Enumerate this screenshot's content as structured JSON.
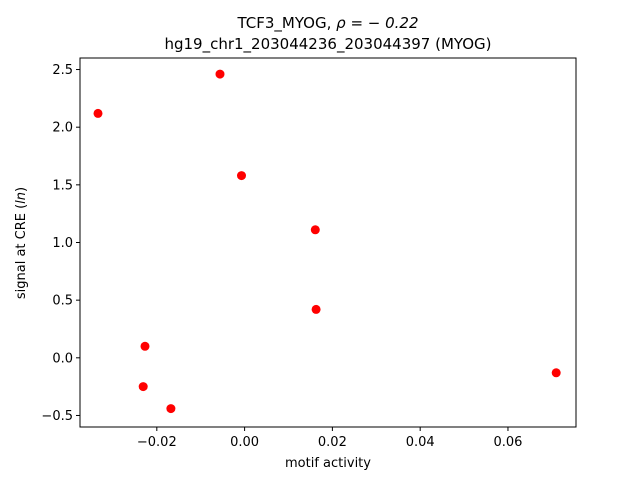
{
  "chart_data": {
    "type": "scatter",
    "title_line1_prefix": "TCF3_MYOG, ",
    "title_line1_rho": "ρ = − 0.22",
    "title_line2": "hg19_chr1_203044236_203044397 (MYOG)",
    "xlabel": "motif activity",
    "ylabel_prefix": "signal at CRE (",
    "ylabel_italic": "ln",
    "ylabel_suffix": ")",
    "xlim": [
      -0.0375,
      0.0755
    ],
    "ylim": [
      -0.6,
      2.6
    ],
    "xticks": [
      -0.02,
      0.0,
      0.02,
      0.04,
      0.06
    ],
    "xtick_labels": [
      "−0.02",
      "0.00",
      "0.02",
      "0.04",
      "0.06"
    ],
    "yticks": [
      -0.5,
      0.0,
      0.5,
      1.0,
      1.5,
      2.0,
      2.5
    ],
    "ytick_labels": [
      "−0.5",
      "0.0",
      "0.5",
      "1.0",
      "1.5",
      "2.0",
      "2.5"
    ],
    "grid": false,
    "marker_color": "#ff0000",
    "points": [
      {
        "x": -0.0334,
        "y": 2.12
      },
      {
        "x": -0.0056,
        "y": 2.46
      },
      {
        "x": -0.0007,
        "y": 1.58
      },
      {
        "x": 0.0161,
        "y": 1.11
      },
      {
        "x": 0.0163,
        "y": 0.42
      },
      {
        "x": -0.0227,
        "y": 0.1
      },
      {
        "x": -0.0231,
        "y": -0.25
      },
      {
        "x": -0.0168,
        "y": -0.44
      },
      {
        "x": 0.071,
        "y": -0.13
      }
    ]
  }
}
